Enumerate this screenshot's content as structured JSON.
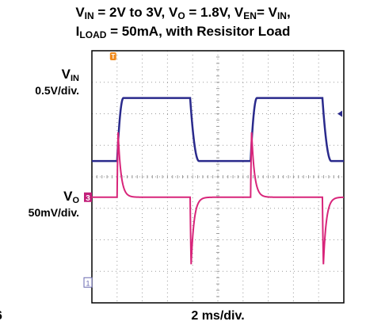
{
  "chart_data": {
    "type": "line",
    "title_parts": [
      {
        "text": "V",
        "sub": "IN"
      },
      {
        "text": " = 2V to 3V, V",
        "sub": "O"
      },
      {
        "text": " = 1.8V, V",
        "sub": "EN"
      },
      {
        "text": "= V",
        "sub": "IN"
      },
      {
        "text": ","
      }
    ],
    "title_line2_parts": [
      {
        "text": "I",
        "sub": "LOAD"
      },
      {
        "text": " = 50mA, with Resisitor Load"
      }
    ],
    "xlabel": "2 ms/div.",
    "stray_text": "6",
    "x_divisions": 10,
    "y_divisions": 8,
    "x_range_ms": [
      0,
      20
    ],
    "channels": [
      {
        "name_main": "V",
        "name_sub": "IN",
        "scale": "0.5V/div.",
        "color": "#2a2a8c",
        "marker": "",
        "low_V": 2.0,
        "high_V": 3.0,
        "high_intervals_ms": [
          [
            2.0,
            7.8
          ],
          [
            12.6,
            18.3
          ]
        ],
        "rise_time_ms": 0.5,
        "fall_time_ms": 0.7
      },
      {
        "name_main": "V",
        "name_sub": "O",
        "scale": "50mV/div.",
        "color": "#d8257a",
        "marker": "3",
        "dc_V": 1.8,
        "overshoot_mV": 145,
        "undershoot_mV": -150,
        "overshoot_times_ms": [
          2.0,
          12.6
        ],
        "undershoot_times_ms": [
          7.8,
          18.3
        ],
        "settling_ms": 0.7
      }
    ],
    "markers": {
      "trigger": "T",
      "ground_ref": "1"
    },
    "grid": true
  }
}
